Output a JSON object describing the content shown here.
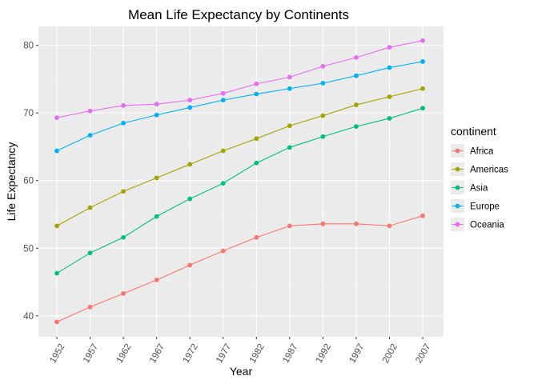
{
  "chart_data": {
    "type": "line",
    "title": "Mean Life Expectancy by Continents",
    "xlabel": "Year",
    "ylabel": "Life Expectancy",
    "x": [
      1952,
      1957,
      1962,
      1967,
      1972,
      1977,
      1982,
      1987,
      1992,
      1997,
      2002,
      2007
    ],
    "y_ticks": [
      40,
      50,
      60,
      70,
      80
    ],
    "ylim": [
      36.9,
      82.8
    ],
    "grid": true,
    "legend": {
      "title": "continent",
      "position": "right"
    },
    "series": [
      {
        "name": "Africa",
        "color": "#F8766D",
        "values": [
          39.1,
          41.3,
          43.3,
          45.3,
          47.5,
          49.6,
          51.6,
          53.3,
          53.6,
          53.6,
          53.3,
          54.8
        ]
      },
      {
        "name": "Americas",
        "color": "#A3A500",
        "values": [
          53.3,
          56.0,
          58.4,
          60.4,
          62.4,
          64.4,
          66.2,
          68.1,
          69.6,
          71.2,
          72.4,
          73.6
        ]
      },
      {
        "name": "Asia",
        "color": "#00BF7D",
        "values": [
          46.3,
          49.3,
          51.6,
          54.7,
          57.3,
          59.6,
          62.6,
          64.9,
          66.5,
          68.0,
          69.2,
          70.7
        ]
      },
      {
        "name": "Europe",
        "color": "#00B0F6",
        "values": [
          64.4,
          66.7,
          68.5,
          69.7,
          70.8,
          71.9,
          72.8,
          73.6,
          74.4,
          75.5,
          76.7,
          77.6
        ]
      },
      {
        "name": "Oceania",
        "color": "#E76BF3",
        "values": [
          69.3,
          70.3,
          71.1,
          71.3,
          71.9,
          72.9,
          74.3,
          75.3,
          76.9,
          78.2,
          79.7,
          80.7
        ]
      }
    ]
  }
}
